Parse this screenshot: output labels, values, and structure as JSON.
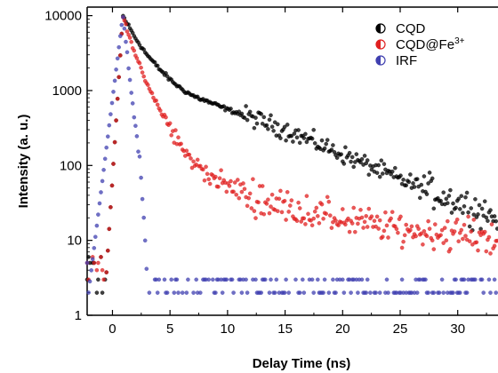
{
  "chart_data": {
    "type": "scatter",
    "xlabel": "Delay Time (ns)",
    "ylabel": "Intensity (a. u.)",
    "xlim": [
      -2.2,
      33.5
    ],
    "ylim": [
      1,
      13000
    ],
    "y_scale": "log",
    "x_ticks": [
      0,
      5,
      10,
      15,
      20,
      25,
      30
    ],
    "y_ticks": [
      1,
      10,
      100,
      1000,
      10000
    ],
    "x_tick_labels": [
      "0",
      "5",
      "10",
      "15",
      "20",
      "25",
      "30"
    ],
    "y_tick_labels": [
      "1",
      "10",
      "100",
      "1000",
      "10000"
    ],
    "legend_position": "top-right",
    "grid": false,
    "series": [
      {
        "name": "CQD",
        "legend_prefix": "",
        "legend_sup": "",
        "color": "#000000",
        "peak_x": 0.9,
        "peak_y": 10000,
        "decay": [
          [
            0.9,
            10000
          ],
          [
            2,
            5000
          ],
          [
            3,
            3000
          ],
          [
            4,
            2000
          ],
          [
            5,
            1400
          ],
          [
            6,
            1050
          ],
          [
            7,
            850
          ],
          [
            10,
            560
          ],
          [
            15,
            300
          ],
          [
            20,
            140
          ],
          [
            25,
            65
          ],
          [
            30,
            33
          ],
          [
            33.5,
            20
          ]
        ]
      },
      {
        "name": "CQD@Fe",
        "legend_prefix": "",
        "legend_sup": "3+",
        "color": "#e02020",
        "peak_x": 0.9,
        "peak_y": 10000,
        "decay": [
          [
            0.9,
            10000
          ],
          [
            2,
            3000
          ],
          [
            3,
            1200
          ],
          [
            4,
            600
          ],
          [
            5,
            320
          ],
          [
            6,
            170
          ],
          [
            7,
            110
          ],
          [
            9,
            65
          ],
          [
            12,
            38
          ],
          [
            15,
            28
          ],
          [
            20,
            19
          ],
          [
            25,
            14
          ],
          [
            30,
            12
          ],
          [
            33.5,
            11
          ]
        ]
      },
      {
        "name": "IRF",
        "legend_prefix": "",
        "legend_sup": "",
        "color": "#4040b0",
        "peak_x": 0.9,
        "peak_y": 10000,
        "decay": [
          [
            0.9,
            10000
          ],
          [
            1.5,
            1500
          ],
          [
            2.0,
            300
          ],
          [
            2.4,
            120
          ],
          [
            2.8,
            12
          ],
          [
            3.0,
            3
          ]
        ]
      }
    ]
  }
}
